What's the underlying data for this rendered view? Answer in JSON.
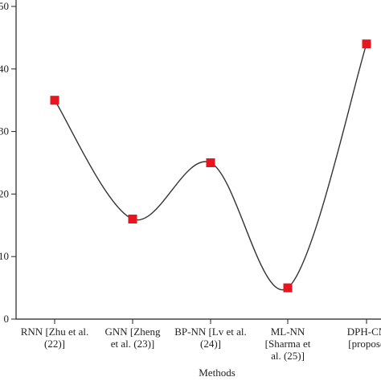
{
  "chart_data": {
    "type": "line",
    "x_label": "Methods",
    "categories": [
      [
        "RNN [Zhu et al.",
        "(22)]"
      ],
      [
        "GNN [Zheng",
        "et al. (23)]"
      ],
      [
        "BP-NN [Lv et al.",
        "(24)]"
      ],
      [
        "ML-NN",
        "[Sharma et",
        "al. (25)]"
      ],
      [
        "DPH-CN",
        "[propose"
      ]
    ],
    "series": [
      {
        "color": "#e8141e",
        "line_color": "#333333",
        "values": [
          35,
          16,
          25,
          5,
          44
        ]
      }
    ],
    "ylim": [
      0,
      50
    ],
    "yticks": [
      0,
      10,
      20,
      30,
      40,
      50
    ],
    "smooth": true
  }
}
